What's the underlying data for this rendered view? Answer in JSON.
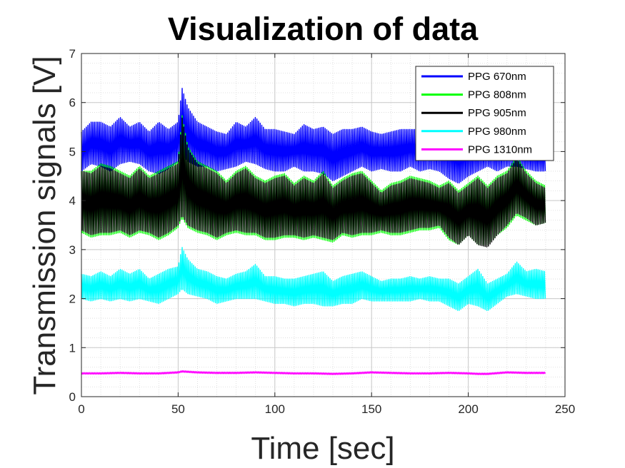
{
  "chart_data": {
    "type": "line",
    "title": "Visualization of data",
    "xlabel": "Time [sec]",
    "ylabel": "Transmission signals [V]",
    "xlim": [
      0,
      250
    ],
    "ylim": [
      0,
      7
    ],
    "xticks": [
      0,
      50,
      100,
      150,
      200,
      250
    ],
    "yticks": [
      0,
      1,
      2,
      3,
      4,
      5,
      6,
      7
    ],
    "grid": true,
    "minor_grid": true,
    "legend_position": "top-right",
    "x_end": 240,
    "series": [
      {
        "name": "PPG 670nm",
        "color": "#0000ff",
        "envelope": [
          [
            0,
            4.6,
            5.4
          ],
          [
            5,
            4.75,
            5.6
          ],
          [
            10,
            4.7,
            5.6
          ],
          [
            15,
            4.6,
            5.5
          ],
          [
            20,
            4.75,
            5.7
          ],
          [
            25,
            4.8,
            5.5
          ],
          [
            30,
            4.75,
            5.6
          ],
          [
            35,
            4.6,
            5.4
          ],
          [
            40,
            4.55,
            5.6
          ],
          [
            45,
            4.65,
            5.45
          ],
          [
            50,
            4.8,
            5.6
          ],
          [
            52,
            4.95,
            6.3
          ],
          [
            55,
            4.8,
            5.9
          ],
          [
            60,
            4.7,
            5.6
          ],
          [
            65,
            4.7,
            5.5
          ],
          [
            70,
            4.6,
            5.4
          ],
          [
            75,
            4.65,
            5.35
          ],
          [
            80,
            4.7,
            5.6
          ],
          [
            85,
            4.8,
            5.5
          ],
          [
            90,
            4.75,
            5.7
          ],
          [
            95,
            4.65,
            5.45
          ],
          [
            100,
            4.6,
            5.45
          ],
          [
            105,
            4.6,
            5.4
          ],
          [
            110,
            4.7,
            5.35
          ],
          [
            115,
            4.6,
            5.55
          ],
          [
            120,
            4.6,
            5.45
          ],
          [
            125,
            4.55,
            5.5
          ],
          [
            130,
            4.4,
            5.35
          ],
          [
            135,
            4.5,
            5.45
          ],
          [
            140,
            4.6,
            5.45
          ],
          [
            145,
            4.7,
            5.5
          ],
          [
            150,
            4.6,
            5.4
          ],
          [
            155,
            4.65,
            5.35
          ],
          [
            160,
            4.6,
            5.4
          ],
          [
            165,
            4.6,
            5.45
          ],
          [
            170,
            4.7,
            5.45
          ],
          [
            175,
            4.6,
            5.45
          ],
          [
            180,
            4.65,
            5.4
          ],
          [
            185,
            4.6,
            5.35
          ],
          [
            190,
            4.45,
            5.5
          ],
          [
            195,
            4.35,
            5.35
          ],
          [
            200,
            4.5,
            5.4
          ],
          [
            205,
            4.6,
            5.3
          ],
          [
            210,
            4.7,
            5.2
          ],
          [
            215,
            4.6,
            5.3
          ],
          [
            220,
            4.7,
            5.25
          ],
          [
            225,
            4.7,
            5.3
          ],
          [
            230,
            4.65,
            5.2
          ],
          [
            235,
            4.6,
            5.2
          ],
          [
            240,
            4.6,
            5.2
          ]
        ]
      },
      {
        "name": "PPG 808nm",
        "color": "#00ff00",
        "envelope": [
          [
            0,
            3.35,
            4.6
          ],
          [
            5,
            3.25,
            4.6
          ],
          [
            10,
            3.3,
            4.75
          ],
          [
            15,
            3.3,
            4.7
          ],
          [
            20,
            3.35,
            4.6
          ],
          [
            25,
            3.25,
            4.5
          ],
          [
            30,
            3.35,
            4.7
          ],
          [
            35,
            3.3,
            4.5
          ],
          [
            40,
            3.2,
            4.6
          ],
          [
            45,
            3.3,
            4.7
          ],
          [
            50,
            3.45,
            4.8
          ],
          [
            52,
            3.65,
            5.75
          ],
          [
            55,
            3.45,
            5.1
          ],
          [
            60,
            3.35,
            4.8
          ],
          [
            65,
            3.3,
            4.7
          ],
          [
            70,
            3.2,
            4.6
          ],
          [
            75,
            3.3,
            4.4
          ],
          [
            80,
            3.35,
            4.6
          ],
          [
            85,
            3.3,
            4.7
          ],
          [
            90,
            3.3,
            4.5
          ],
          [
            95,
            3.2,
            4.4
          ],
          [
            100,
            3.2,
            4.5
          ],
          [
            105,
            3.25,
            4.55
          ],
          [
            110,
            3.25,
            4.35
          ],
          [
            115,
            3.2,
            4.5
          ],
          [
            120,
            3.25,
            4.4
          ],
          [
            125,
            3.2,
            4.6
          ],
          [
            130,
            3.15,
            4.3
          ],
          [
            135,
            3.3,
            4.45
          ],
          [
            140,
            3.25,
            4.55
          ],
          [
            145,
            3.3,
            4.6
          ],
          [
            150,
            3.3,
            4.4
          ],
          [
            155,
            3.35,
            4.2
          ],
          [
            160,
            3.3,
            4.35
          ],
          [
            165,
            3.3,
            4.4
          ],
          [
            170,
            3.35,
            4.5
          ],
          [
            175,
            3.4,
            4.45
          ],
          [
            180,
            3.4,
            4.4
          ],
          [
            185,
            3.45,
            4.3
          ],
          [
            190,
            3.2,
            4.4
          ],
          [
            195,
            3.1,
            4.2
          ],
          [
            200,
            3.3,
            4.35
          ],
          [
            205,
            3.1,
            4.5
          ],
          [
            210,
            3.1,
            4.3
          ],
          [
            215,
            3.3,
            4.5
          ],
          [
            220,
            3.45,
            4.6
          ],
          [
            225,
            3.7,
            4.9
          ],
          [
            230,
            3.6,
            4.6
          ],
          [
            235,
            3.5,
            4.4
          ],
          [
            240,
            3.55,
            4.3
          ]
        ]
      },
      {
        "name": "PPG 905nm",
        "color": "#000000",
        "envelope": [
          [
            0,
            3.4,
            4.6
          ],
          [
            5,
            3.3,
            4.55
          ],
          [
            10,
            3.35,
            4.7
          ],
          [
            15,
            3.35,
            4.65
          ],
          [
            20,
            3.4,
            4.55
          ],
          [
            25,
            3.3,
            4.45
          ],
          [
            30,
            3.4,
            4.65
          ],
          [
            35,
            3.35,
            4.45
          ],
          [
            40,
            3.25,
            4.55
          ],
          [
            45,
            3.35,
            4.65
          ],
          [
            50,
            3.5,
            4.75
          ],
          [
            52,
            3.7,
            5.7
          ],
          [
            55,
            3.5,
            5.05
          ],
          [
            60,
            3.4,
            4.75
          ],
          [
            65,
            3.35,
            4.65
          ],
          [
            70,
            3.25,
            4.55
          ],
          [
            75,
            3.35,
            4.35
          ],
          [
            80,
            3.4,
            4.55
          ],
          [
            85,
            3.35,
            4.65
          ],
          [
            90,
            3.35,
            4.45
          ],
          [
            95,
            3.25,
            4.35
          ],
          [
            100,
            3.25,
            4.45
          ],
          [
            105,
            3.3,
            4.5
          ],
          [
            110,
            3.3,
            4.3
          ],
          [
            115,
            3.25,
            4.45
          ],
          [
            120,
            3.3,
            4.35
          ],
          [
            125,
            3.25,
            4.55
          ],
          [
            130,
            3.2,
            4.25
          ],
          [
            135,
            3.35,
            4.4
          ],
          [
            140,
            3.3,
            4.5
          ],
          [
            145,
            3.35,
            4.55
          ],
          [
            150,
            3.35,
            4.35
          ],
          [
            155,
            3.4,
            4.15
          ],
          [
            160,
            3.35,
            4.3
          ],
          [
            165,
            3.35,
            4.35
          ],
          [
            170,
            3.4,
            4.45
          ],
          [
            175,
            3.45,
            4.4
          ],
          [
            180,
            3.45,
            4.35
          ],
          [
            185,
            3.5,
            4.25
          ],
          [
            190,
            3.25,
            4.35
          ],
          [
            195,
            3.1,
            4.15
          ],
          [
            200,
            3.3,
            4.3
          ],
          [
            205,
            3.1,
            4.45
          ],
          [
            210,
            3.05,
            4.25
          ],
          [
            215,
            3.3,
            4.45
          ],
          [
            220,
            3.5,
            4.55
          ],
          [
            225,
            3.75,
            4.85
          ],
          [
            230,
            3.65,
            4.55
          ],
          [
            235,
            3.5,
            4.35
          ],
          [
            240,
            3.55,
            4.25
          ]
        ]
      },
      {
        "name": "PPG 980nm",
        "color": "#00ffff",
        "envelope": [
          [
            0,
            2.0,
            2.5
          ],
          [
            5,
            1.95,
            2.45
          ],
          [
            10,
            2.0,
            2.55
          ],
          [
            15,
            1.95,
            2.45
          ],
          [
            20,
            2.0,
            2.6
          ],
          [
            25,
            1.95,
            2.5
          ],
          [
            30,
            2.0,
            2.6
          ],
          [
            35,
            1.95,
            2.4
          ],
          [
            40,
            1.9,
            2.5
          ],
          [
            45,
            2.0,
            2.6
          ],
          [
            50,
            2.1,
            2.65
          ],
          [
            52,
            2.2,
            3.05
          ],
          [
            55,
            2.1,
            2.8
          ],
          [
            60,
            2.05,
            2.6
          ],
          [
            65,
            2.0,
            2.55
          ],
          [
            70,
            1.9,
            2.45
          ],
          [
            75,
            1.95,
            2.4
          ],
          [
            80,
            2.0,
            2.5
          ],
          [
            85,
            2.0,
            2.55
          ],
          [
            90,
            2.0,
            2.7
          ],
          [
            95,
            1.95,
            2.45
          ],
          [
            100,
            1.9,
            2.45
          ],
          [
            105,
            1.9,
            2.4
          ],
          [
            110,
            1.85,
            2.4
          ],
          [
            115,
            1.9,
            2.45
          ],
          [
            120,
            1.9,
            2.5
          ],
          [
            125,
            1.85,
            2.55
          ],
          [
            130,
            1.85,
            2.35
          ],
          [
            135,
            1.9,
            2.45
          ],
          [
            140,
            1.9,
            2.5
          ],
          [
            145,
            2.0,
            2.55
          ],
          [
            150,
            1.95,
            2.45
          ],
          [
            155,
            1.95,
            2.35
          ],
          [
            160,
            1.95,
            2.4
          ],
          [
            165,
            1.95,
            2.4
          ],
          [
            170,
            1.95,
            2.45
          ],
          [
            175,
            2.0,
            2.4
          ],
          [
            180,
            1.95,
            2.45
          ],
          [
            185,
            1.95,
            2.4
          ],
          [
            190,
            1.85,
            2.4
          ],
          [
            195,
            1.75,
            2.3
          ],
          [
            200,
            1.9,
            2.45
          ],
          [
            205,
            1.85,
            2.6
          ],
          [
            210,
            1.75,
            2.3
          ],
          [
            215,
            1.9,
            2.4
          ],
          [
            220,
            2.05,
            2.5
          ],
          [
            225,
            2.1,
            2.75
          ],
          [
            230,
            2.05,
            2.55
          ],
          [
            235,
            2.0,
            2.6
          ],
          [
            240,
            2.0,
            2.55
          ]
        ]
      },
      {
        "name": "PPG 1310nm",
        "color": "#ff00ff",
        "envelope": [
          [
            0,
            0.46,
            0.49
          ],
          [
            10,
            0.46,
            0.49
          ],
          [
            20,
            0.47,
            0.5
          ],
          [
            30,
            0.46,
            0.49
          ],
          [
            40,
            0.46,
            0.49
          ],
          [
            50,
            0.48,
            0.51
          ],
          [
            52,
            0.5,
            0.53
          ],
          [
            60,
            0.48,
            0.51
          ],
          [
            70,
            0.47,
            0.5
          ],
          [
            80,
            0.47,
            0.5
          ],
          [
            90,
            0.48,
            0.51
          ],
          [
            100,
            0.47,
            0.5
          ],
          [
            110,
            0.46,
            0.49
          ],
          [
            120,
            0.46,
            0.49
          ],
          [
            130,
            0.45,
            0.48
          ],
          [
            140,
            0.46,
            0.49
          ],
          [
            150,
            0.48,
            0.51
          ],
          [
            160,
            0.47,
            0.5
          ],
          [
            170,
            0.46,
            0.49
          ],
          [
            180,
            0.46,
            0.49
          ],
          [
            190,
            0.47,
            0.5
          ],
          [
            200,
            0.46,
            0.49
          ],
          [
            205,
            0.45,
            0.48
          ],
          [
            210,
            0.45,
            0.48
          ],
          [
            220,
            0.48,
            0.51
          ],
          [
            230,
            0.47,
            0.5
          ],
          [
            240,
            0.47,
            0.5
          ]
        ]
      }
    ]
  }
}
